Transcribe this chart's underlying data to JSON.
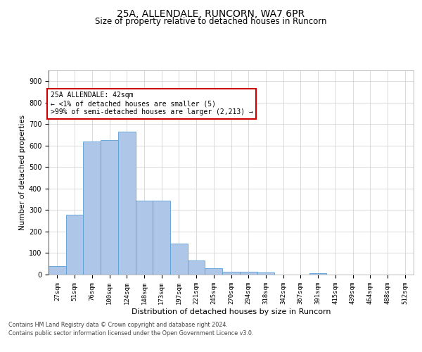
{
  "title_line1": "25A, ALLENDALE, RUNCORN, WA7 6PR",
  "title_line2": "Size of property relative to detached houses in Runcorn",
  "xlabel": "Distribution of detached houses by size in Runcorn",
  "ylabel": "Number of detached properties",
  "categories": [
    "27sqm",
    "51sqm",
    "76sqm",
    "100sqm",
    "124sqm",
    "148sqm",
    "173sqm",
    "197sqm",
    "221sqm",
    "245sqm",
    "270sqm",
    "294sqm",
    "318sqm",
    "342sqm",
    "367sqm",
    "391sqm",
    "415sqm",
    "439sqm",
    "464sqm",
    "488sqm",
    "512sqm"
  ],
  "values": [
    40,
    280,
    620,
    625,
    665,
    345,
    345,
    145,
    65,
    28,
    14,
    12,
    11,
    0,
    0,
    8,
    0,
    0,
    0,
    0,
    0
  ],
  "bar_color": "#aec6e8",
  "bar_edge_color": "#5a9fd4",
  "annotation_text": "25A ALLENDALE: 42sqm\n← <1% of detached houses are smaller (5)\n>99% of semi-detached houses are larger (2,213) →",
  "annotation_box_color": "#ffffff",
  "annotation_box_edge_color": "#cc0000",
  "marker_line_color": "#cc0000",
  "ylim": [
    0,
    950
  ],
  "yticks": [
    0,
    100,
    200,
    300,
    400,
    500,
    600,
    700,
    800,
    900
  ],
  "background_color": "#ffffff",
  "grid_color": "#cccccc",
  "footer_line1": "Contains HM Land Registry data © Crown copyright and database right 2024.",
  "footer_line2": "Contains public sector information licensed under the Open Government Licence v3.0."
}
